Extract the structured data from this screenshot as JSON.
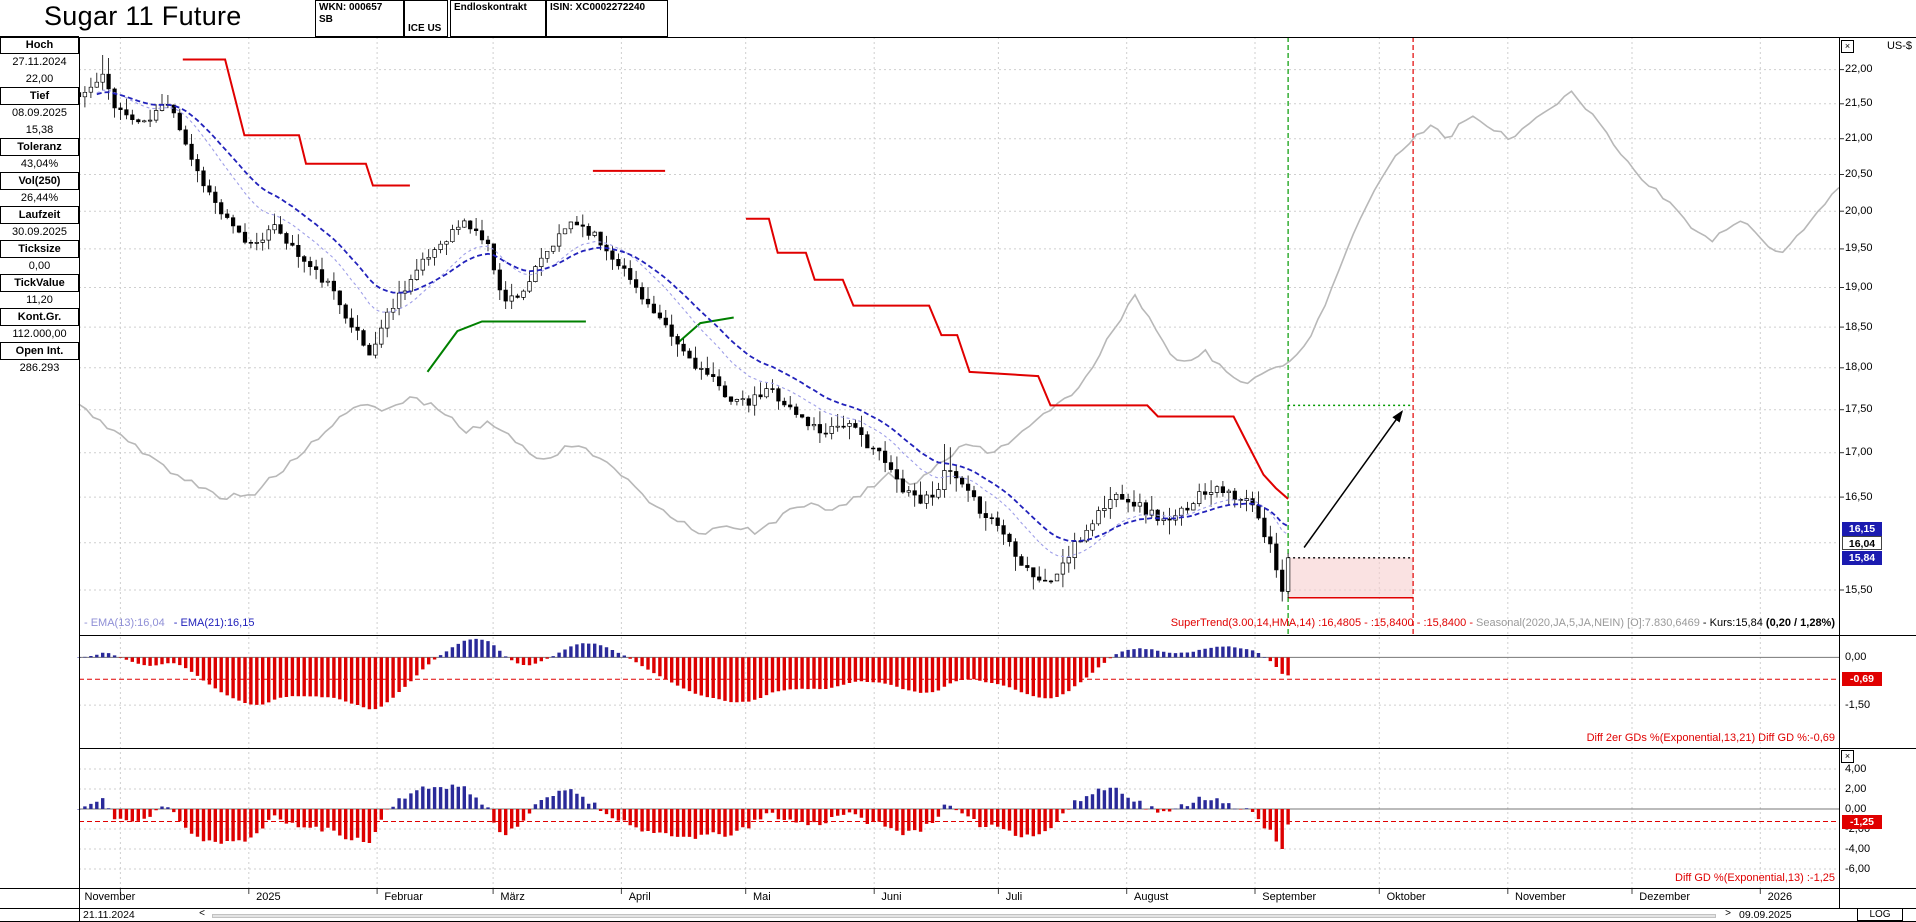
{
  "header": {
    "title": "Sugar 11 Future",
    "cells": [
      {
        "lines": [
          "WKN: 000657",
          "SB"
        ]
      },
      {
        "lines": [
          "ICE US"
        ]
      },
      {
        "lines": [
          "Endloskontrakt"
        ]
      },
      {
        "lines": [
          "ISIN: XC0002272240"
        ]
      }
    ]
  },
  "info_panel": {
    "rows": [
      {
        "label": "Hoch",
        "values": [
          "27.11.2024",
          "22,00"
        ]
      },
      {
        "label": "Tief",
        "values": [
          "08.09.2025",
          "15,38"
        ]
      },
      {
        "label": "Toleranz",
        "values": [
          "43,04%"
        ]
      },
      {
        "label": "Vol(250)",
        "values": [
          "26,44%"
        ]
      },
      {
        "label": "Laufzeit",
        "values": [
          "30.09.2025"
        ]
      },
      {
        "label": "Ticksize",
        "values": [
          "0,00"
        ]
      },
      {
        "label": "TickValue",
        "values": [
          "11,20"
        ]
      },
      {
        "label": "Kont.Gr.",
        "values": [
          "112.000,00"
        ]
      },
      {
        "label": "Open Int.",
        "values": [
          "286.293"
        ]
      }
    ]
  },
  "main_legend": {
    "ema13": "- EMA(13):16,04",
    "ema21": "- EMA(21):16,15",
    "supertrend": "SuperTrend(3.00,14,HMA,14) :16,4805 - :15,8400 - :15,8400 -",
    "seasonal": "Seasonal(2020,JA,5,JA,NEIN) [O]:7.830,6469",
    "kurs": "- Kurs:15,84",
    "kurs_change": "(0,20 / 1,28%)"
  },
  "price_axis": {
    "currency": "US-$",
    "log_label": "LOG",
    "labels": [
      {
        "t": "22,00",
        "v": 22
      },
      {
        "t": "21,50",
        "v": 21.5
      },
      {
        "t": "21,00",
        "v": 21
      },
      {
        "t": "20,50",
        "v": 20.5
      },
      {
        "t": "20,00",
        "v": 20
      },
      {
        "t": "19,50",
        "v": 19.5
      },
      {
        "t": "19,00",
        "v": 19
      },
      {
        "t": "18,50",
        "v": 18.5
      },
      {
        "t": "18,00",
        "v": 18
      },
      {
        "t": "17,50",
        "v": 17.5
      },
      {
        "t": "17,00",
        "v": 17
      },
      {
        "t": "16,50",
        "v": 16.5
      },
      {
        "t": "15,50",
        "v": 15.5
      }
    ],
    "tags": [
      {
        "t": "16,15",
        "v": 16.15,
        "style": "blue"
      },
      {
        "t": "16,04",
        "v": 16.04,
        "style": "white"
      },
      {
        "t": "15,84",
        "v": 15.84,
        "style": "blue"
      }
    ]
  },
  "sub1": {
    "legend": "Diff 2er GDs %(Exponential,13,21) Diff GD %:-0,69",
    "axis": [
      {
        "t": "0,00",
        "v": 0
      },
      {
        "t": "-1,50",
        "v": -1.5
      }
    ],
    "tag": {
      "t": "-0,69",
      "v": -0.69
    }
  },
  "sub2": {
    "legend": "Diff GD %(Exponential,13) :-1,25",
    "axis": [
      {
        "t": "4,00",
        "v": 4
      },
      {
        "t": "2,00",
        "v": 2
      },
      {
        "t": "0,00",
        "v": 0
      },
      {
        "t": "-2,00",
        "v": -2
      },
      {
        "t": "-4,00",
        "v": -4
      },
      {
        "t": "-6,00",
        "v": -6
      }
    ],
    "tag": {
      "t": "-1,25",
      "v": -1.25
    }
  },
  "bottom_bar": {
    "start_date": "21.11.2024",
    "end_date": "09.09.2025",
    "left_arrow": "<",
    "right_arrow": ">"
  },
  "icons": {
    "close": "×"
  },
  "colors": {
    "red": "#e00000",
    "green": "#008000",
    "dark_green": "#009900",
    "ema13": "#9f9fe8",
    "ema21": "#2222bb",
    "seasonal": "#b8b8b8",
    "grid": "#cfcfcf",
    "hist_pos": "#2a2a99",
    "hist_neg": "#dd0000",
    "tag_blue": "#1b1bb0",
    "stop_zone": "#f6cfcf"
  },
  "chart_data": {
    "type": "candlestick",
    "title": "Sugar 11 Future",
    "price_scale": "log",
    "ylabel": "US-$",
    "ylim": [
      15.5,
      22.0
    ],
    "ytick": 0.5,
    "high_value": 22.0,
    "low_value": 15.38,
    "last_close": 15.84,
    "ema13_value": 16.04,
    "ema21_value": 16.15,
    "supertrend_value": 16.4805,
    "target_price": 17.55,
    "entry_price": 15.84,
    "stop_zone": {
      "top": 15.84,
      "bottom": 15.42
    },
    "current_date_fx": 0.687,
    "projection_fx": 0.758,
    "price_anchors": [
      [
        0,
        21.6
      ],
      [
        0.008,
        21.75
      ],
      [
        0.014,
        21.9
      ],
      [
        0.02,
        21.5
      ],
      [
        0.028,
        21.3
      ],
      [
        0.038,
        21.2
      ],
      [
        0.046,
        21.45
      ],
      [
        0.052,
        21.55
      ],
      [
        0.058,
        21.1
      ],
      [
        0.066,
        20.6
      ],
      [
        0.074,
        20.25
      ],
      [
        0.08,
        20
      ],
      [
        0.088,
        19.75
      ],
      [
        0.097,
        19.55
      ],
      [
        0.106,
        19.7
      ],
      [
        0.113,
        19.78
      ],
      [
        0.12,
        19.55
      ],
      [
        0.127,
        19.35
      ],
      [
        0.134,
        19.2
      ],
      [
        0.141,
        19.05
      ],
      [
        0.148,
        18.8
      ],
      [
        0.155,
        18.55
      ],
      [
        0.161,
        18.3
      ],
      [
        0.165,
        18.15
      ],
      [
        0.17,
        18.4
      ],
      [
        0.176,
        18.7
      ],
      [
        0.183,
        18.95
      ],
      [
        0.19,
        19.15
      ],
      [
        0.197,
        19.35
      ],
      [
        0.204,
        19.55
      ],
      [
        0.211,
        19.7
      ],
      [
        0.218,
        19.85
      ],
      [
        0.225,
        19.75
      ],
      [
        0.232,
        19.55
      ],
      [
        0.238,
        19.1
      ],
      [
        0.242,
        18.8
      ],
      [
        0.247,
        18.9
      ],
      [
        0.252,
        18.95
      ],
      [
        0.259,
        19.2
      ],
      [
        0.266,
        19.45
      ],
      [
        0.273,
        19.65
      ],
      [
        0.28,
        19.88
      ],
      [
        0.286,
        19.8
      ],
      [
        0.292,
        19.7
      ],
      [
        0.299,
        19.5
      ],
      [
        0.306,
        19.35
      ],
      [
        0.313,
        19.1
      ],
      [
        0.32,
        18.9
      ],
      [
        0.327,
        18.65
      ],
      [
        0.334,
        18.45
      ],
      [
        0.341,
        18.25
      ],
      [
        0.35,
        18.05
      ],
      [
        0.357,
        17.9
      ],
      [
        0.364,
        17.75
      ],
      [
        0.372,
        17.62
      ],
      [
        0.379,
        17.55
      ],
      [
        0.386,
        17.65
      ],
      [
        0.393,
        17.75
      ],
      [
        0.4,
        17.6
      ],
      [
        0.407,
        17.45
      ],
      [
        0.414,
        17.35
      ],
      [
        0.421,
        17.25
      ],
      [
        0.428,
        17.3
      ],
      [
        0.435,
        17.35
      ],
      [
        0.443,
        17.2
      ],
      [
        0.452,
        17.05
      ],
      [
        0.459,
        16.85
      ],
      [
        0.466,
        16.65
      ],
      [
        0.473,
        16.55
      ],
      [
        0.48,
        16.45
      ],
      [
        0.487,
        16.6
      ],
      [
        0.494,
        16.8
      ],
      [
        0.501,
        16.62
      ],
      [
        0.508,
        16.45
      ],
      [
        0.515,
        16.32
      ],
      [
        0.522,
        16.2
      ],
      [
        0.529,
        16
      ],
      [
        0.536,
        15.8
      ],
      [
        0.543,
        15.65
      ],
      [
        0.55,
        15.55
      ],
      [
        0.557,
        15.72
      ],
      [
        0.564,
        15.9
      ],
      [
        0.571,
        16.1
      ],
      [
        0.578,
        16.3
      ],
      [
        0.585,
        16.45
      ],
      [
        0.592,
        16.55
      ],
      [
        0.599,
        16.45
      ],
      [
        0.606,
        16.35
      ],
      [
        0.613,
        16.28
      ],
      [
        0.62,
        16.2
      ],
      [
        0.627,
        16.35
      ],
      [
        0.634,
        16.5
      ],
      [
        0.641,
        16.58
      ],
      [
        0.648,
        16.65
      ],
      [
        0.654,
        16.5
      ],
      [
        0.659,
        16.42
      ],
      [
        0.664,
        16.48
      ],
      [
        0.669,
        16.3
      ],
      [
        0.673,
        16.1
      ],
      [
        0.677,
        15.95
      ],
      [
        0.681,
        15.7
      ],
      [
        0.684,
        15.5
      ],
      [
        0.687,
        15.84
      ]
    ],
    "seasonal_anchors": [
      [
        0,
        17.55
      ],
      [
        0.02,
        17.25
      ],
      [
        0.04,
        16.95
      ],
      [
        0.06,
        16.7
      ],
      [
        0.08,
        16.5
      ],
      [
        0.1,
        16.55
      ],
      [
        0.115,
        16.8
      ],
      [
        0.13,
        17.05
      ],
      [
        0.145,
        17.35
      ],
      [
        0.16,
        17.55
      ],
      [
        0.175,
        17.5
      ],
      [
        0.19,
        17.65
      ],
      [
        0.205,
        17.5
      ],
      [
        0.22,
        17.25
      ],
      [
        0.235,
        17.35
      ],
      [
        0.25,
        17.1
      ],
      [
        0.265,
        16.9
      ],
      [
        0.28,
        17.1
      ],
      [
        0.295,
        16.95
      ],
      [
        0.31,
        16.7
      ],
      [
        0.325,
        16.45
      ],
      [
        0.34,
        16.25
      ],
      [
        0.355,
        16.1
      ],
      [
        0.37,
        16.2
      ],
      [
        0.385,
        16.1
      ],
      [
        0.4,
        16.3
      ],
      [
        0.415,
        16.45
      ],
      [
        0.43,
        16.35
      ],
      [
        0.445,
        16.55
      ],
      [
        0.46,
        16.75
      ],
      [
        0.475,
        16.65
      ],
      [
        0.49,
        16.9
      ],
      [
        0.505,
        17.1
      ],
      [
        0.52,
        17
      ],
      [
        0.535,
        17.25
      ],
      [
        0.55,
        17.45
      ],
      [
        0.565,
        17.7
      ],
      [
        0.578,
        18.1
      ],
      [
        0.59,
        18.55
      ],
      [
        0.6,
        18.9
      ],
      [
        0.608,
        18.6
      ],
      [
        0.617,
        18.25
      ],
      [
        0.627,
        18.05
      ],
      [
        0.64,
        18.2
      ],
      [
        0.652,
        17.95
      ],
      [
        0.664,
        17.8
      ],
      [
        0.674,
        17.95
      ],
      [
        0.687,
        18.05
      ],
      [
        0.7,
        18.4
      ],
      [
        0.712,
        19
      ],
      [
        0.724,
        19.7
      ],
      [
        0.736,
        20.3
      ],
      [
        0.748,
        20.75
      ],
      [
        0.758,
        21
      ],
      [
        0.768,
        21.2
      ],
      [
        0.778,
        21
      ],
      [
        0.79,
        21.35
      ],
      [
        0.8,
        21.2
      ],
      [
        0.812,
        21
      ],
      [
        0.824,
        21.2
      ],
      [
        0.836,
        21.45
      ],
      [
        0.848,
        21.65
      ],
      [
        0.858,
        21.4
      ],
      [
        0.868,
        21.1
      ],
      [
        0.878,
        20.7
      ],
      [
        0.89,
        20.4
      ],
      [
        0.902,
        20.15
      ],
      [
        0.914,
        19.85
      ],
      [
        0.926,
        19.6
      ],
      [
        0.936,
        19.75
      ],
      [
        0.946,
        19.9
      ],
      [
        0.956,
        19.6
      ],
      [
        0.966,
        19.45
      ],
      [
        0.976,
        19.65
      ],
      [
        0.986,
        19.9
      ],
      [
        1,
        20.35
      ]
    ],
    "supertrend_segments": [
      {
        "color": "red",
        "points": [
          [
            0.059,
            22.15
          ],
          [
            0.083,
            22.15
          ],
          [
            0.094,
            21.05
          ],
          [
            0.125,
            21.05
          ],
          [
            0.129,
            20.65
          ],
          [
            0.163,
            20.65
          ],
          [
            0.167,
            20.35
          ],
          [
            0.188,
            20.35
          ]
        ]
      },
      {
        "color": "green",
        "points": [
          [
            0.198,
            17.95
          ],
          [
            0.215,
            18.45
          ],
          [
            0.229,
            18.57
          ],
          [
            0.288,
            18.57
          ]
        ]
      },
      {
        "color": "red",
        "points": [
          [
            0.292,
            20.55
          ],
          [
            0.333,
            20.55
          ]
        ]
      },
      {
        "color": "green",
        "points": [
          [
            0.34,
            18.3
          ],
          [
            0.353,
            18.55
          ],
          [
            0.372,
            18.62
          ]
        ]
      },
      {
        "color": "red",
        "points": [
          [
            0.379,
            19.9
          ],
          [
            0.392,
            19.9
          ],
          [
            0.397,
            19.45
          ],
          [
            0.413,
            19.45
          ],
          [
            0.418,
            19.1
          ],
          [
            0.434,
            19.1
          ],
          [
            0.44,
            18.77
          ],
          [
            0.483,
            18.77
          ],
          [
            0.49,
            18.4
          ],
          [
            0.499,
            18.4
          ],
          [
            0.506,
            17.95
          ],
          [
            0.545,
            17.9
          ],
          [
            0.552,
            17.55
          ],
          [
            0.607,
            17.55
          ],
          [
            0.613,
            17.42
          ],
          [
            0.656,
            17.42
          ],
          [
            0.664,
            17.1
          ],
          [
            0.673,
            16.75
          ],
          [
            0.68,
            16.6
          ],
          [
            0.687,
            16.48
          ]
        ]
      }
    ],
    "time_axis": {
      "boundaries": [
        0.0235,
        0.0965,
        0.1694,
        0.2353,
        0.3082,
        0.3788,
        0.4518,
        0.5224,
        0.5953,
        0.6682,
        0.7388,
        0.8118,
        0.8824,
        0.9553
      ],
      "months": [
        {
          "label": "November",
          "fx": 0.002
        },
        {
          "label": "2025",
          "fx": 0.0995
        },
        {
          "label": "Februar",
          "fx": 0.1724
        },
        {
          "label": "März",
          "fx": 0.2383
        },
        {
          "label": "April",
          "fx": 0.3112
        },
        {
          "label": "Mai",
          "fx": 0.3818
        },
        {
          "label": "Juni",
          "fx": 0.4548
        },
        {
          "label": "Juli",
          "fx": 0.5254
        },
        {
          "label": "August",
          "fx": 0.5983
        },
        {
          "label": "September",
          "fx": 0.6712
        },
        {
          "label": "Oktober",
          "fx": 0.7418
        },
        {
          "label": "November",
          "fx": 0.8148
        },
        {
          "label": "Dezember",
          "fx": 0.8854
        },
        {
          "label": "2026",
          "fx": 0.9583
        }
      ]
    },
    "histograms": {
      "sub1": {
        "name": "Diff 2er GDs %(Exponential,13,21)",
        "final_value": -0.69
      },
      "sub2": {
        "name": "Diff GD %(Exponential,13)",
        "final_value": -1.25
      }
    }
  }
}
